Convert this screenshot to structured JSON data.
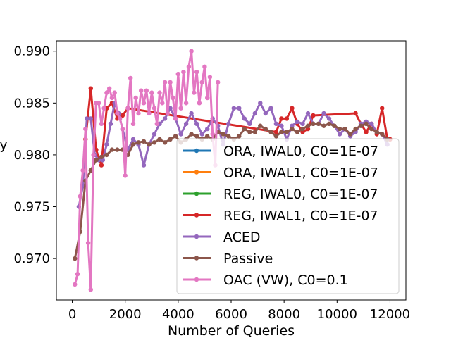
{
  "chart_data": {
    "type": "line",
    "title": "",
    "xlabel": "Number of Queries",
    "ylabel": "y",
    "xlim": [
      -600,
      12600
    ],
    "ylim": [
      0.966,
      0.991
    ],
    "xticks": [
      0,
      2000,
      4000,
      6000,
      8000,
      10000,
      12000
    ],
    "xtick_labels": [
      "0",
      "2000",
      "4000",
      "6000",
      "8000",
      "10000",
      "12000"
    ],
    "yticks": [
      0.97,
      0.975,
      0.98,
      0.985,
      0.99
    ],
    "ytick_labels": [
      "0.970",
      "0.975",
      "0.980",
      "0.985",
      "0.990"
    ],
    "legend_position": "lower-right",
    "series": [
      {
        "name": "ORA, IWAL0, C0=1E-07",
        "color": "#1f77b4",
        "x": [],
        "y": []
      },
      {
        "name": "ORA, IWAL1, C0=1E-07",
        "color": "#ff7f0e",
        "x": [],
        "y": []
      },
      {
        "name": "REG, IWAL0, C0=1E-07",
        "color": "#2ca02c",
        "x": [],
        "y": []
      },
      {
        "name": "REG, IWAL1, C0=1E-07",
        "color": "#d62728",
        "x": [
          500,
          700,
          900,
          1100,
          1300,
          1500,
          1700,
          1900,
          2100,
          7700,
          7900,
          8100,
          8300,
          8500,
          8700,
          8900,
          9100,
          10700,
          10900,
          11100,
          11300,
          11500,
          11700,
          11900,
          12000
        ],
        "y": [
          0.9815,
          0.9864,
          0.9805,
          0.979,
          0.9845,
          0.985,
          0.9835,
          0.9838,
          0.9845,
          0.9822,
          0.9835,
          0.9835,
          0.9845,
          0.983,
          0.9822,
          0.9825,
          0.9838,
          0.984,
          0.983,
          0.9822,
          0.983,
          0.982,
          0.9845,
          0.9815,
          0.9815
        ]
      },
      {
        "name": "ACED",
        "color": "#9467bd",
        "x": [
          250,
          400,
          550,
          700,
          850,
          1000,
          1150,
          1300,
          1450,
          1600,
          1750,
          1900,
          2100,
          2300,
          2500,
          2700,
          2900,
          3100,
          3300,
          3500,
          3700,
          3900,
          4100,
          4300,
          4500,
          4700,
          4900,
          5100,
          5300,
          5500,
          5700,
          5900,
          6100,
          6300,
          6500,
          6700,
          6900,
          7100,
          7300,
          7500,
          7700,
          7900,
          8100,
          8300,
          8500,
          8700,
          8900,
          9100,
          9300,
          9500,
          9700,
          9900,
          10100,
          10300,
          10500,
          10700,
          10900,
          11100,
          11300,
          11500,
          11700,
          11900
        ],
        "y": [
          0.975,
          0.977,
          0.9835,
          0.9835,
          0.98,
          0.9795,
          0.9795,
          0.981,
          0.983,
          0.985,
          0.984,
          0.9825,
          0.9805,
          0.9815,
          0.981,
          0.979,
          0.981,
          0.982,
          0.983,
          0.9835,
          0.9845,
          0.9835,
          0.982,
          0.983,
          0.984,
          0.983,
          0.982,
          0.9825,
          0.9835,
          0.9828,
          0.981,
          0.983,
          0.9845,
          0.9845,
          0.9835,
          0.983,
          0.984,
          0.985,
          0.984,
          0.9845,
          0.983,
          0.9828,
          0.9815,
          0.9828,
          0.9832,
          0.983,
          0.984,
          0.983,
          0.983,
          0.984,
          0.9835,
          0.9828,
          0.982,
          0.9825,
          0.9818,
          0.9822,
          0.983,
          0.9832,
          0.983,
          0.9822,
          0.982,
          0.981
        ]
      },
      {
        "name": "Passive",
        "color": "#8c564b",
        "x": [
          100,
          300,
          500,
          700,
          900,
          1100,
          1300,
          1500,
          1700,
          1900,
          2100,
          2300,
          2500,
          2700,
          2900,
          3100,
          3300,
          3500,
          3700,
          3900,
          4100,
          4300,
          4500,
          4700,
          4900,
          5100,
          5300,
          5500,
          5700,
          5900,
          6100,
          6300,
          6500,
          6700,
          6900,
          7100,
          7300,
          7500,
          7700,
          7900,
          8100,
          8300,
          8500,
          8700,
          8900,
          9100,
          9300,
          9500,
          9700,
          9900,
          10100,
          10300,
          10500,
          10700,
          10900,
          11100,
          11300,
          11500,
          11700,
          11900
        ],
        "y": [
          0.97,
          0.9726,
          0.9775,
          0.9785,
          0.9795,
          0.9798,
          0.98,
          0.9805,
          0.9805,
          0.9805,
          0.98,
          0.981,
          0.9812,
          0.9813,
          0.981,
          0.9812,
          0.9815,
          0.9812,
          0.9815,
          0.9818,
          0.9812,
          0.9815,
          0.982,
          0.9818,
          0.9815,
          0.9818,
          0.9815,
          0.9822,
          0.982,
          0.9818,
          0.9815,
          0.9818,
          0.9825,
          0.9822,
          0.9822,
          0.9828,
          0.9825,
          0.9822,
          0.9818,
          0.9822,
          0.9822,
          0.9825,
          0.9822,
          0.9825,
          0.9828,
          0.983,
          0.983,
          0.9828,
          0.983,
          0.9828,
          0.9825,
          0.9825,
          0.982,
          0.9825,
          0.9828,
          0.983,
          0.9825,
          0.9822,
          0.982,
          0.9815
        ]
      },
      {
        "name": "OAC (VW), C0=0.1",
        "color": "#e377c2",
        "x": [
          100,
          200,
          300,
          400,
          500,
          600,
          700,
          800,
          900,
          1000,
          1100,
          1200,
          1300,
          1400,
          1500,
          1600,
          1700,
          1800,
          1900,
          2000,
          2100,
          2200,
          2300,
          2400,
          2500,
          2600,
          2700,
          2800,
          2900,
          3000,
          3100,
          3200,
          3300,
          3400,
          3500,
          3600,
          3700,
          3800,
          3900,
          4000,
          4100,
          4200,
          4300,
          4400,
          4500,
          4600,
          4700,
          4800,
          4900,
          5000,
          5100,
          5200,
          5300,
          5400,
          5500
        ],
        "y": [
          0.9675,
          0.9685,
          0.976,
          0.9785,
          0.9825,
          0.9715,
          0.967,
          0.98,
          0.985,
          0.985,
          0.983,
          0.9845,
          0.986,
          0.9864,
          0.9855,
          0.986,
          0.984,
          0.9835,
          0.9825,
          0.978,
          0.9845,
          0.9874,
          0.983,
          0.9855,
          0.984,
          0.9862,
          0.985,
          0.9862,
          0.984,
          0.986,
          0.9845,
          0.983,
          0.986,
          0.985,
          0.987,
          0.984,
          0.987,
          0.9855,
          0.9835,
          0.9878,
          0.9845,
          0.988,
          0.985,
          0.9885,
          0.99,
          0.986,
          0.988,
          0.985,
          0.987,
          0.9885,
          0.9855,
          0.9875,
          0.982,
          0.979,
          0.987
        ]
      }
    ]
  }
}
